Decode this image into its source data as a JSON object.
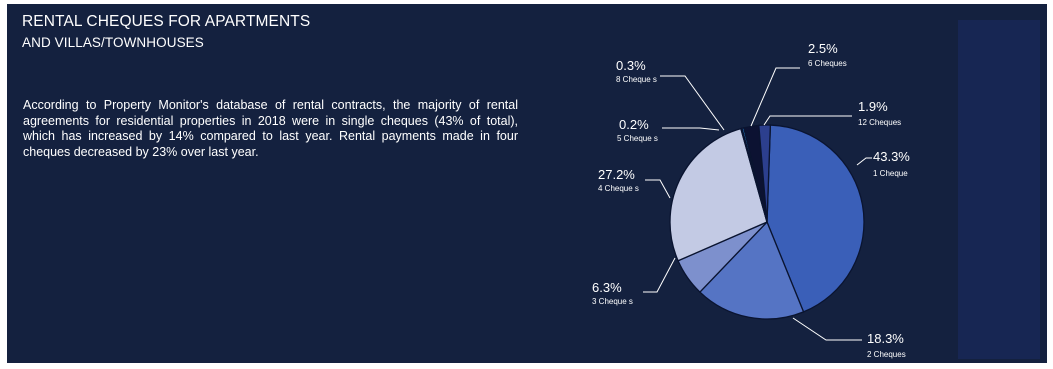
{
  "colors": {
    "background": "#14213f",
    "side_strip": "#172653",
    "leader": "#ffffff",
    "slice_border": "#0a1430"
  },
  "header": {
    "title_line1": "RENTAL  CHEQUES FOR APARTMENTS",
    "title_line2": "AND VILLAS/TOWNHOUSES"
  },
  "description": "According to Property Monitor's database of rental contracts, the majority of rental agreements for residential properties in 2018 were in single cheques (43% of total), which has increased by 14% compared to last year. Rental payments made in four cheques decreased by 23% over last year.",
  "chart_data": {
    "type": "pie",
    "slices": [
      {
        "label": "1 Cheque",
        "pct_text": "43.3%",
        "value": 43.3,
        "color": "#3a5fb8"
      },
      {
        "label": "2 Cheques",
        "pct_text": "18.3%",
        "value": 18.3,
        "color": "#5574c4"
      },
      {
        "label": "3 Cheque s",
        "pct_text": "6.3%",
        "value": 6.3,
        "color": "#7d90cd"
      },
      {
        "label": "4 Cheque s",
        "pct_text": "27.2%",
        "value": 27.2,
        "color": "#c3cae4"
      },
      {
        "label": "5 Cheque s",
        "pct_text": "0.2%",
        "value": 0.2,
        "color": "#5fb0ea"
      },
      {
        "label": "8 Cheque s",
        "pct_text": "0.3%",
        "value": 0.3,
        "color": "#2a8ee0"
      },
      {
        "label": "6 Cheques",
        "pct_text": "2.5%",
        "value": 2.5,
        "color": "#0c1232"
      },
      {
        "label": "12 Cheques",
        "pct_text": "1.9%",
        "value": 1.9,
        "color": "#2c3f8e"
      }
    ]
  }
}
